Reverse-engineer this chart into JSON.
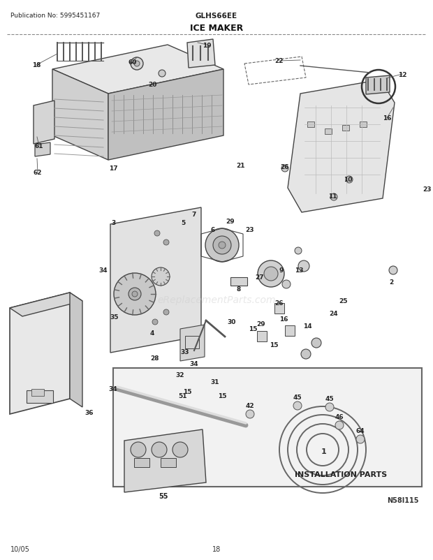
{
  "title_left": "Publication No: 5995451167",
  "title_center": "GLHS66EE",
  "title_diagram": "ICE MAKER",
  "page_number": "18",
  "date": "10/05",
  "diagram_id": "N58I115",
  "watermark": "eReplacementParts.com",
  "installation_parts_label": "INSTALLATION PARTS",
  "bg_color": "#ffffff",
  "line_color": "#555555"
}
